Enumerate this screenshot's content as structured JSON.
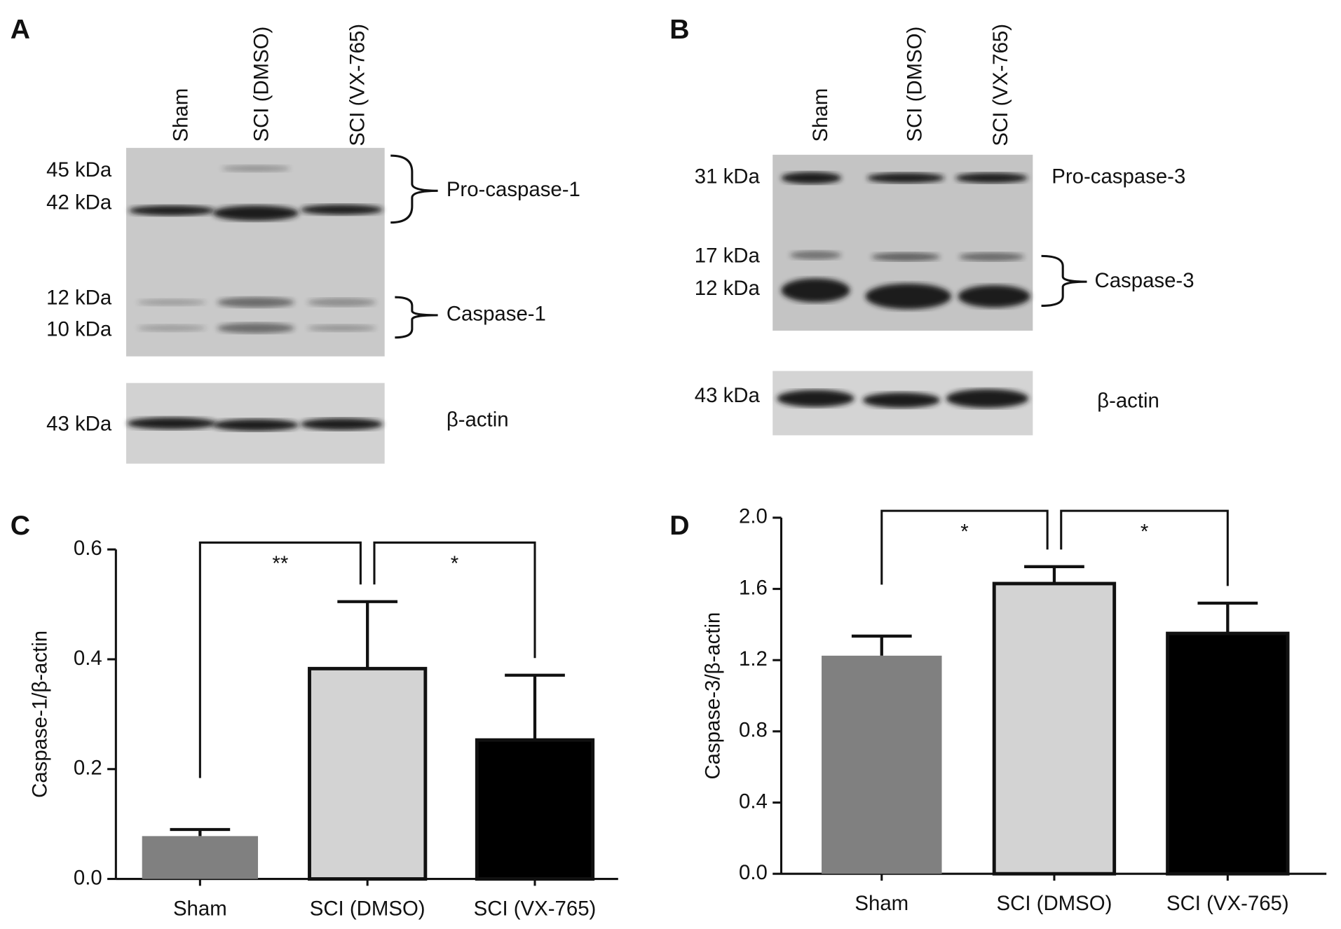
{
  "blots": [
    {
      "panel": "A",
      "lanes": [
        "Sham",
        "SCI (DMSO)",
        "SCI (VX-765)"
      ],
      "markers": [
        "45 kDa",
        "42 kDa",
        "12 kDa",
        "10 kDa"
      ],
      "targets": [
        "Pro-caspase-1",
        "Caspase-1"
      ],
      "loading_marker": "43 kDa",
      "loading_label": "β-actin"
    },
    {
      "panel": "B",
      "lanes": [
        "Sham",
        "SCI (DMSO)",
        "SCI (VX-765)"
      ],
      "markers": [
        "31 kDa",
        "17 kDa",
        "12 kDa"
      ],
      "targets": [
        "Pro-caspase-3",
        "Caspase-3"
      ],
      "loading_marker": "43 kDa",
      "loading_label": "β-actin"
    }
  ],
  "chart_data": [
    {
      "type": "bar",
      "panel": "C",
      "y_label": "Caspase-1/β-actin",
      "categories": [
        "Sham",
        "SCI (DMSO)",
        "SCI (VX-765)"
      ],
      "values": [
        0.078,
        0.383,
        0.253
      ],
      "errors": [
        0.012,
        0.122,
        0.118
      ],
      "colors": [
        "#808080",
        "#d3d3d3",
        "#000000"
      ],
      "ylim": [
        0,
        0.6
      ],
      "yticks": [
        {
          "value": 0,
          "label": "0.0"
        },
        0.2,
        0.4,
        0.6
      ],
      "annotations": [
        "**",
        "*"
      ]
    },
    {
      "type": "bar",
      "panel": "D",
      "y_label": "Caspase-3/β-actin",
      "categories": [
        "Sham",
        "SCI (DMSO)",
        "SCI (VX-765)"
      ],
      "values": [
        1.225,
        1.63,
        1.35
      ],
      "errors": [
        0.11,
        0.095,
        0.17
      ],
      "colors": [
        "#808080",
        "#d3d3d3",
        "#000000"
      ],
      "ylim": [
        0,
        2.0
      ],
      "yticks": [
        {
          "value": 0,
          "label": "0.0"
        },
        0.4,
        0.8,
        1.2,
        1.6,
        {
          "value": 2.0,
          "label": "2.0"
        }
      ],
      "annotations": [
        "*",
        "*"
      ]
    }
  ]
}
